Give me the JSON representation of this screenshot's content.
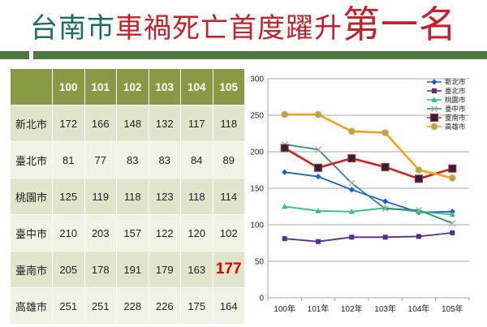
{
  "title": {
    "part1": "台南市",
    "part2": "車禍死亡首度躍升",
    "part3": "第一名"
  },
  "table": {
    "headers": [
      "",
      "100",
      "101",
      "102",
      "103",
      "104",
      "105"
    ],
    "highlight": {
      "row": 4,
      "col": 5
    }
  },
  "chart_data": {
    "type": "line",
    "categories": [
      "100年",
      "101年",
      "102年",
      "103年",
      "104年",
      "105年"
    ],
    "series": [
      {
        "name": "新北市",
        "values": [
          172,
          166,
          148,
          132,
          117,
          118
        ],
        "color": "#1f5fbf",
        "marker": "diamond"
      },
      {
        "name": "臺北市",
        "values": [
          81,
          77,
          83,
          83,
          84,
          89
        ],
        "color": "#5a2d91",
        "marker": "square"
      },
      {
        "name": "桃園市",
        "values": [
          125,
          119,
          118,
          123,
          118,
          114
        ],
        "color": "#2ec27a",
        "marker": "triangle"
      },
      {
        "name": "臺中市",
        "values": [
          210,
          203,
          157,
          122,
          120,
          102
        ],
        "color": "#2e8b7a",
        "marker": "x"
      },
      {
        "name": "臺南市",
        "values": [
          205,
          178,
          191,
          179,
          163,
          177
        ],
        "color": "#d42020",
        "marker": "square-dark"
      },
      {
        "name": "高雄市",
        "values": [
          251,
          251,
          228,
          226,
          175,
          164
        ],
        "color": "#f2a31f",
        "marker": "circle"
      }
    ],
    "ylim": [
      0,
      300
    ],
    "yticks": [
      0,
      50,
      100,
      150,
      200,
      250,
      300
    ],
    "grid": true,
    "legend": "top-right",
    "title": "",
    "xlabel": "",
    "ylabel": ""
  }
}
